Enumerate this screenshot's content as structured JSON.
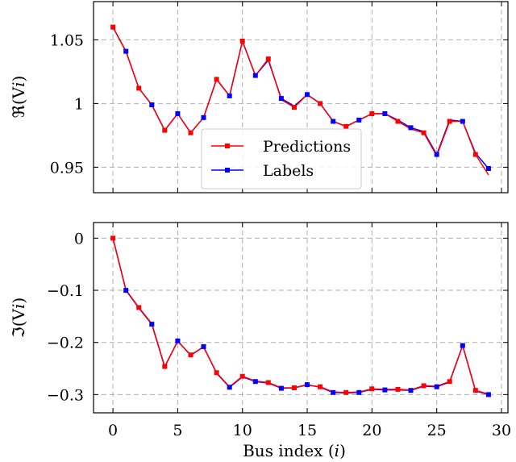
{
  "colors": {
    "predictions": "#ff0000",
    "labels": "#0000ff",
    "grid": "#b0b0b0",
    "axis": "#000000"
  },
  "chart_data": [
    {
      "type": "line",
      "ylabel": "ℜ(V",
      "ylabel_sub": "i",
      "ylabel_close": ")",
      "xlim": [
        -1.5,
        30.5
      ],
      "ylim": [
        0.93,
        1.08
      ],
      "xticks": [
        0,
        5,
        10,
        15,
        20,
        25,
        30
      ],
      "xtick_labels_shown": false,
      "yticks": [
        0.95,
        1,
        1.05
      ],
      "ytick_labels": [
        "0.95",
        "1",
        "1.05"
      ],
      "grid": true,
      "legend_position": "lower-center",
      "x": [
        0,
        1,
        2,
        3,
        4,
        5,
        6,
        7,
        8,
        9,
        10,
        11,
        12,
        13,
        14,
        15,
        16,
        17,
        18,
        19,
        20,
        21,
        22,
        23,
        24,
        25,
        26,
        27,
        28,
        29
      ],
      "series": [
        {
          "name": "Predictions",
          "color": "#ff0000",
          "values": [
            1.06,
            1.041,
            1.012,
            0.999,
            0.979,
            0.992,
            0.977,
            0.989,
            1.019,
            1.006,
            1.049,
            1.022,
            1.035,
            1.003,
            0.997,
            1.007,
            1.0,
            0.986,
            0.982,
            0.987,
            0.992,
            0.992,
            0.986,
            0.98,
            0.977,
            0.959,
            0.986,
            0.986,
            0.96,
            0.944
          ]
        },
        {
          "name": "Labels",
          "color": "#0000ff",
          "values": [
            1.06,
            1.041,
            1.012,
            0.999,
            0.979,
            0.992,
            0.977,
            0.989,
            1.019,
            1.006,
            1.049,
            1.022,
            1.034,
            1.004,
            0.998,
            1.007,
            1.0,
            0.986,
            0.982,
            0.987,
            0.992,
            0.992,
            0.987,
            0.981,
            0.978,
            0.96,
            0.987,
            0.986,
            0.961,
            0.949
          ]
        }
      ]
    },
    {
      "type": "line",
      "ylabel": "ℑ(V",
      "ylabel_sub": "i",
      "ylabel_close": ")",
      "xlabel": "Bus index (",
      "xlabel_var": "i",
      "xlabel_close": ")",
      "xlim": [
        -1.5,
        30.5
      ],
      "ylim": [
        -0.335,
        0.03
      ],
      "xticks": [
        0,
        5,
        10,
        15,
        20,
        25,
        30
      ],
      "xtick_labels": [
        "0",
        "5",
        "10",
        "15",
        "20",
        "25",
        "30"
      ],
      "yticks": [
        0,
        -0.1,
        -0.2,
        -0.3
      ],
      "ytick_labels": [
        "0",
        "−0.1",
        "−0.2",
        "−0.3"
      ],
      "grid": true,
      "x": [
        0,
        1,
        2,
        3,
        4,
        5,
        6,
        7,
        8,
        9,
        10,
        11,
        12,
        13,
        14,
        15,
        16,
        17,
        18,
        19,
        20,
        21,
        22,
        23,
        24,
        25,
        26,
        27,
        28,
        29
      ],
      "series": [
        {
          "name": "Predictions",
          "color": "#ff0000",
          "values": [
            0.0,
            -0.099,
            -0.133,
            -0.164,
            -0.246,
            -0.198,
            -0.224,
            -0.209,
            -0.258,
            -0.285,
            -0.265,
            -0.274,
            -0.277,
            -0.287,
            -0.287,
            -0.282,
            -0.285,
            -0.295,
            -0.296,
            -0.295,
            -0.289,
            -0.29,
            -0.29,
            -0.291,
            -0.283,
            -0.284,
            -0.275,
            -0.206,
            -0.292,
            -0.299
          ]
        },
        {
          "name": "Labels",
          "color": "#0000ff",
          "values": [
            0.0,
            -0.1,
            -0.134,
            -0.165,
            -0.247,
            -0.197,
            -0.225,
            -0.208,
            -0.259,
            -0.286,
            -0.266,
            -0.275,
            -0.278,
            -0.288,
            -0.287,
            -0.281,
            -0.286,
            -0.296,
            -0.297,
            -0.296,
            -0.29,
            -0.291,
            -0.291,
            -0.292,
            -0.284,
            -0.285,
            -0.276,
            -0.206,
            -0.293,
            -0.3
          ]
        }
      ]
    }
  ]
}
